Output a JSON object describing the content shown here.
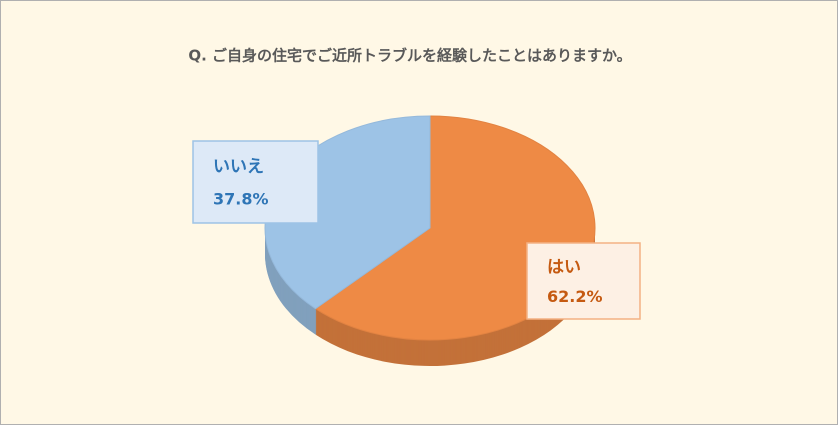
{
  "chart_data": {
    "type": "pie",
    "title": "Q. ご自身の住宅でご近所トラブルを経験したことはありますか。",
    "categories": [
      "はい",
      "いいえ"
    ],
    "values": [
      62.2,
      37.8
    ],
    "value_labels": [
      "62.2%",
      "37.8%"
    ],
    "colors": [
      "#ee8a45",
      "#9dc3e6"
    ]
  }
}
